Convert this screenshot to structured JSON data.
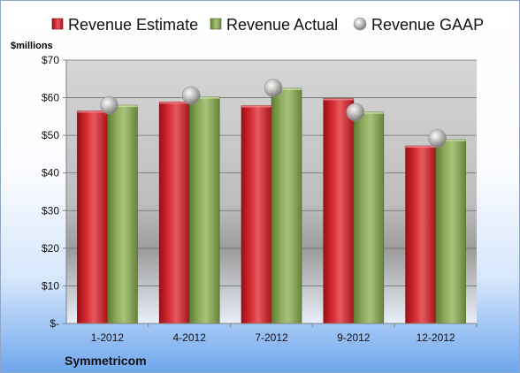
{
  "chart_data": {
    "type": "bar",
    "title": "",
    "ylabel": "$millions",
    "xlabel": "",
    "company": "Symmetricom",
    "categories": [
      "1-2012",
      "4-2012",
      "7-2012",
      "9-2012",
      "12-2012"
    ],
    "ylim": [
      0,
      70
    ],
    "yticks": [
      0,
      10,
      20,
      30,
      40,
      50,
      60,
      70
    ],
    "ytick_labels": [
      "$-",
      "$10",
      "$20",
      "$30",
      "$40",
      "$50",
      "$60",
      "$70"
    ],
    "grid": true,
    "legend_position": "top",
    "series": [
      {
        "name": "Revenue Estimate",
        "kind": "bar",
        "color": "#d0202a",
        "values": [
          56.5,
          58.9,
          57.9,
          59.8,
          47.2
        ]
      },
      {
        "name": "Revenue Actual",
        "kind": "bar",
        "color": "#8aa85a",
        "values": [
          58.0,
          60.2,
          62.5,
          56.2,
          48.9
        ]
      },
      {
        "name": "Revenue GAAP",
        "kind": "marker",
        "color": "#a8a8a8",
        "values": [
          58.0,
          60.6,
          62.6,
          56.2,
          49.2
        ]
      }
    ]
  }
}
